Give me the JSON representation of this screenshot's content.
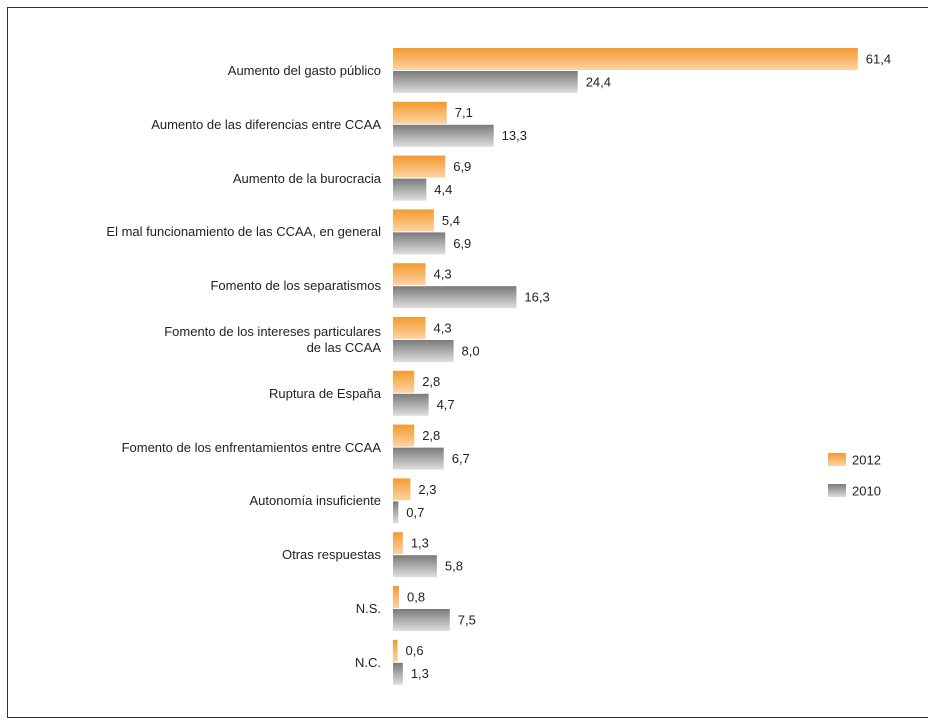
{
  "chart_data": {
    "type": "hbar",
    "categories": [
      "Aumento del  gasto público",
      "Aumento de las diferencias entre CCAA",
      "Aumento de la burocracia",
      "El mal funcionamiento de las CCAA, en general",
      "Fomento de los separatismos",
      "Fomento de los intereses particulares\nde las CCAA",
      "Ruptura de España",
      "Fomento de los enfrentamientos entre CCAA",
      "Autonomía insuficiente",
      "Otras respuestas",
      "N.S.",
      "N.C."
    ],
    "series": [
      {
        "name": "2012",
        "color": "#f7941d",
        "values": [
          61.4,
          7.1,
          6.9,
          5.4,
          4.3,
          4.3,
          2.8,
          2.8,
          2.3,
          1.3,
          0.8,
          0.6
        ],
        "value_labels": [
          "61,4",
          "7,1",
          "6,9",
          "5,4",
          "4,3",
          "4,3",
          "2,8",
          "2,8",
          "2,3",
          "1,3",
          "0,8",
          "0,6"
        ]
      },
      {
        "name": "2010",
        "color": "#808080",
        "values": [
          24.4,
          13.3,
          4.4,
          6.9,
          16.3,
          8.0,
          4.7,
          6.7,
          0.7,
          5.8,
          7.5,
          1.3
        ],
        "value_labels": [
          "24,4",
          "13,3",
          "4,4",
          "6,9",
          "16,3",
          "8,0",
          "4,7",
          "6,7",
          "0,7",
          "5,8",
          "7,5",
          "1,3"
        ]
      }
    ],
    "legend": "right"
  }
}
